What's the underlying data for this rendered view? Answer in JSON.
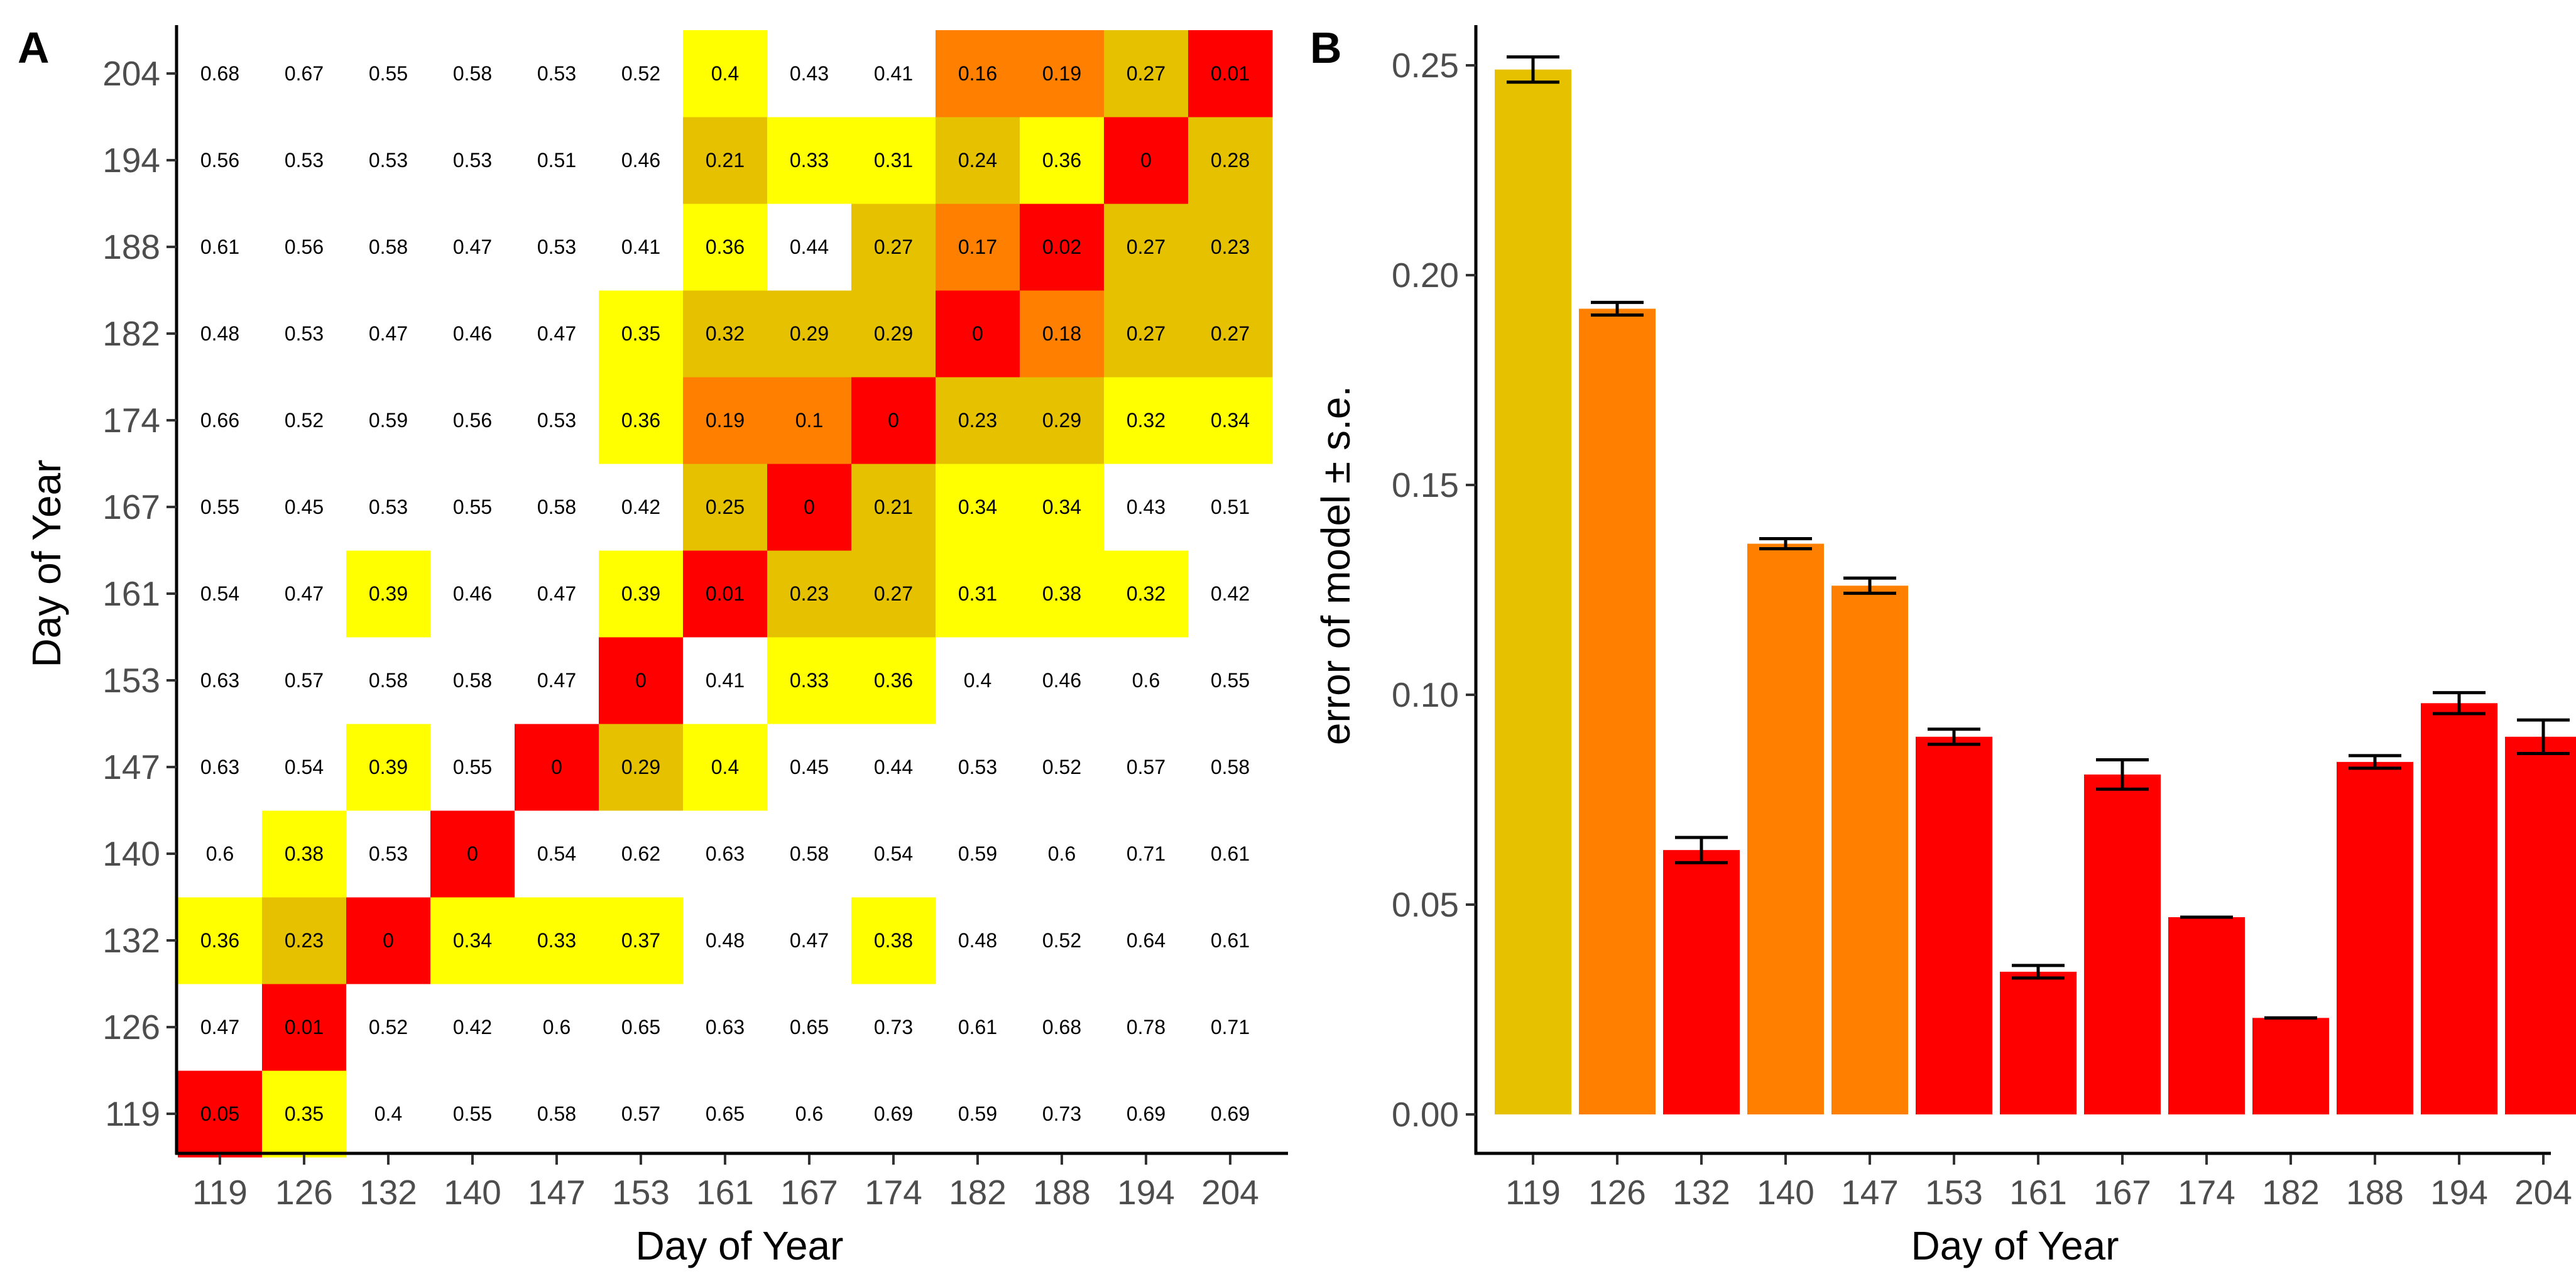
{
  "colors": {
    "red": "#ff0000",
    "orange": "#ff8000",
    "gold": "#e6c100",
    "yellow": "#ffff00",
    "white": "#ffffff"
  },
  "chart_data": [
    {
      "panel": "A",
      "type": "heatmap",
      "xlabel": "Day of Year",
      "ylabel": "Day of Year",
      "x_categories": [
        "119",
        "126",
        "132",
        "140",
        "147",
        "153",
        "161",
        "167",
        "174",
        "182",
        "188",
        "194",
        "204"
      ],
      "y_categories": [
        "119",
        "126",
        "132",
        "140",
        "147",
        "153",
        "161",
        "167",
        "174",
        "182",
        "188",
        "194",
        "204"
      ],
      "rows": [
        {
          "day": "119",
          "values": [
            "0.05",
            "0.35",
            "0.4",
            "0.55",
            "0.58",
            "0.57",
            "0.65",
            "0.6",
            "0.69",
            "0.59",
            "0.73",
            "0.69",
            "0.69"
          ],
          "fills": [
            "red",
            "yellow",
            "white",
            "white",
            "white",
            "white",
            "white",
            "white",
            "white",
            "white",
            "white",
            "white",
            "white"
          ]
        },
        {
          "day": "126",
          "values": [
            "0.47",
            "0.01",
            "0.52",
            "0.42",
            "0.6",
            "0.65",
            "0.63",
            "0.65",
            "0.73",
            "0.61",
            "0.68",
            "0.78",
            "0.71"
          ],
          "fills": [
            "white",
            "red",
            "white",
            "white",
            "white",
            "white",
            "white",
            "white",
            "white",
            "white",
            "white",
            "white",
            "white"
          ]
        },
        {
          "day": "132",
          "values": [
            "0.36",
            "0.23",
            "0",
            "0.34",
            "0.33",
            "0.37",
            "0.48",
            "0.47",
            "0.38",
            "0.48",
            "0.52",
            "0.64",
            "0.61"
          ],
          "fills": [
            "yellow",
            "gold",
            "red",
            "yellow",
            "yellow",
            "yellow",
            "white",
            "white",
            "yellow",
            "white",
            "white",
            "white",
            "white"
          ]
        },
        {
          "day": "140",
          "values": [
            "0.6",
            "0.38",
            "0.53",
            "0",
            "0.54",
            "0.62",
            "0.63",
            "0.58",
            "0.54",
            "0.59",
            "0.6",
            "0.71",
            "0.61"
          ],
          "fills": [
            "white",
            "yellow",
            "white",
            "red",
            "white",
            "white",
            "white",
            "white",
            "white",
            "white",
            "white",
            "white",
            "white"
          ]
        },
        {
          "day": "147",
          "values": [
            "0.63",
            "0.54",
            "0.39",
            "0.55",
            "0",
            "0.29",
            "0.4",
            "0.45",
            "0.44",
            "0.53",
            "0.52",
            "0.57",
            "0.58"
          ],
          "fills": [
            "white",
            "white",
            "yellow",
            "white",
            "red",
            "gold",
            "yellow",
            "white",
            "white",
            "white",
            "white",
            "white",
            "white"
          ]
        },
        {
          "day": "153",
          "values": [
            "0.63",
            "0.57",
            "0.58",
            "0.58",
            "0.47",
            "0",
            "0.41",
            "0.33",
            "0.36",
            "0.4",
            "0.46",
            "0.6",
            "0.55"
          ],
          "fills": [
            "white",
            "white",
            "white",
            "white",
            "white",
            "red",
            "white",
            "yellow",
            "yellow",
            "white",
            "white",
            "white",
            "white"
          ]
        },
        {
          "day": "161",
          "values": [
            "0.54",
            "0.47",
            "0.39",
            "0.46",
            "0.47",
            "0.39",
            "0.01",
            "0.23",
            "0.27",
            "0.31",
            "0.38",
            "0.32",
            "0.42"
          ],
          "fills": [
            "white",
            "white",
            "yellow",
            "white",
            "white",
            "yellow",
            "red",
            "gold",
            "gold",
            "yellow",
            "yellow",
            "yellow",
            "white"
          ]
        },
        {
          "day": "167",
          "values": [
            "0.55",
            "0.45",
            "0.53",
            "0.55",
            "0.58",
            "0.42",
            "0.25",
            "0",
            "0.21",
            "0.34",
            "0.34",
            "0.43",
            "0.51"
          ],
          "fills": [
            "white",
            "white",
            "white",
            "white",
            "white",
            "white",
            "gold",
            "red",
            "gold",
            "yellow",
            "yellow",
            "white",
            "white"
          ]
        },
        {
          "day": "174",
          "values": [
            "0.66",
            "0.52",
            "0.59",
            "0.56",
            "0.53",
            "0.36",
            "0.19",
            "0.1",
            "0",
            "0.23",
            "0.29",
            "0.32",
            "0.34"
          ],
          "fills": [
            "white",
            "white",
            "white",
            "white",
            "white",
            "yellow",
            "orange",
            "orange",
            "red",
            "gold",
            "gold",
            "yellow",
            "yellow"
          ]
        },
        {
          "day": "182",
          "values": [
            "0.48",
            "0.53",
            "0.47",
            "0.46",
            "0.47",
            "0.35",
            "0.32",
            "0.29",
            "0.29",
            "0",
            "0.18",
            "0.27",
            "0.27"
          ],
          "fills": [
            "white",
            "white",
            "white",
            "white",
            "white",
            "yellow",
            "gold",
            "gold",
            "gold",
            "red",
            "orange",
            "gold",
            "gold"
          ]
        },
        {
          "day": "188",
          "values": [
            "0.61",
            "0.56",
            "0.58",
            "0.47",
            "0.53",
            "0.41",
            "0.36",
            "0.44",
            "0.27",
            "0.17",
            "0.02",
            "0.27",
            "0.23"
          ],
          "fills": [
            "white",
            "white",
            "white",
            "white",
            "white",
            "white",
            "yellow",
            "white",
            "gold",
            "orange",
            "red",
            "gold",
            "gold"
          ]
        },
        {
          "day": "194",
          "values": [
            "0.56",
            "0.53",
            "0.53",
            "0.53",
            "0.51",
            "0.46",
            "0.21",
            "0.33",
            "0.31",
            "0.24",
            "0.36",
            "0",
            "0.28"
          ],
          "fills": [
            "white",
            "white",
            "white",
            "white",
            "white",
            "white",
            "gold",
            "yellow",
            "yellow",
            "gold",
            "yellow",
            "red",
            "gold"
          ]
        },
        {
          "day": "204",
          "values": [
            "0.68",
            "0.67",
            "0.55",
            "0.58",
            "0.53",
            "0.52",
            "0.4",
            "0.43",
            "0.41",
            "0.16",
            "0.19",
            "0.27",
            "0.01"
          ],
          "fills": [
            "white",
            "white",
            "white",
            "white",
            "white",
            "white",
            "yellow",
            "white",
            "white",
            "orange",
            "orange",
            "gold",
            "red"
          ]
        }
      ]
    },
    {
      "panel": "B",
      "type": "bar",
      "xlabel": "Day of Year",
      "ylabel": "error of model ± s.e.",
      "categories": [
        "119",
        "126",
        "132",
        "140",
        "147",
        "153",
        "161",
        "167",
        "174",
        "182",
        "188",
        "194",
        "204"
      ],
      "values": [
        0.249,
        0.192,
        0.063,
        0.136,
        0.126,
        0.09,
        0.034,
        0.081,
        0.047,
        0.023,
        0.084,
        0.098,
        0.09
      ],
      "se": [
        0.003,
        0.0015,
        0.003,
        0.0012,
        0.0018,
        0.0018,
        0.0015,
        0.0035,
        0.0,
        0.0,
        0.0015,
        0.0025,
        0.004
      ],
      "fills": [
        "gold",
        "orange",
        "red",
        "orange",
        "orange",
        "red",
        "red",
        "red",
        "red",
        "red",
        "red",
        "red",
        "red"
      ],
      "ylim": [
        0,
        0.26
      ],
      "yticks": [
        "0.00",
        "0.05",
        "0.10",
        "0.15",
        "0.20",
        "0.25"
      ]
    }
  ]
}
